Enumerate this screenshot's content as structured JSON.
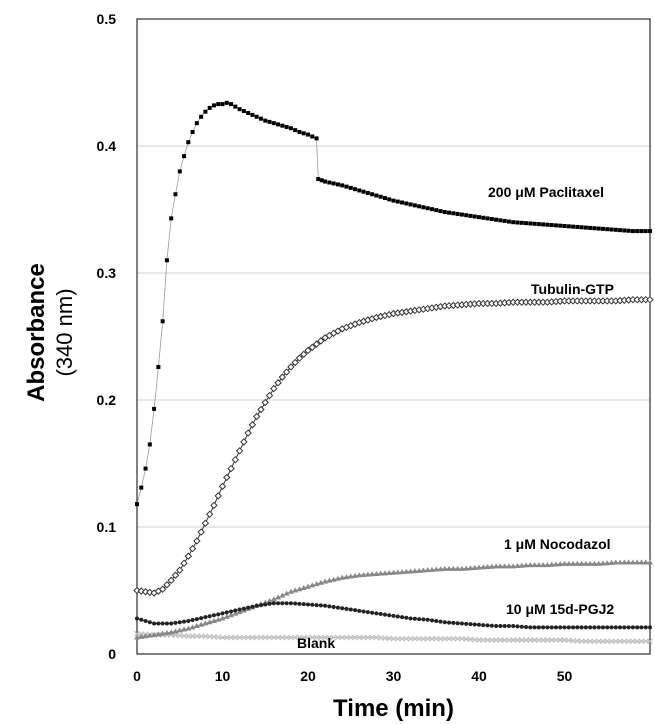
{
  "chart_data": {
    "type": "scatter",
    "title": "",
    "xlabel": "Time (min)",
    "ylabel": "Absorbance",
    "ylabel_unit": "(340 nm)",
    "xlim": [
      0,
      60
    ],
    "ylim": [
      0,
      0.5
    ],
    "x_ticks": [
      0,
      10,
      20,
      30,
      40,
      50
    ],
    "y_ticks": [
      0,
      0.1,
      0.2,
      0.3,
      0.4,
      0.5
    ],
    "y_tick_labels": [
      "0",
      "0.1",
      "0.2",
      "0.3",
      "0.4",
      "0.5"
    ],
    "grid": "horizontal",
    "legend": "inline labels",
    "series": [
      {
        "name": "200 μM Paclitaxel",
        "color": "#000000",
        "marker": "square-filled",
        "points": [
          [
            0,
            0.118
          ],
          [
            0.5,
            0.131
          ],
          [
            1,
            0.146
          ],
          [
            1.5,
            0.165
          ],
          [
            2,
            0.193
          ],
          [
            2.5,
            0.226
          ],
          [
            3,
            0.262
          ],
          [
            3.5,
            0.31
          ],
          [
            4,
            0.343
          ],
          [
            4.5,
            0.362
          ],
          [
            5,
            0.38
          ],
          [
            5.5,
            0.392
          ],
          [
            6,
            0.403
          ],
          [
            6.5,
            0.411
          ],
          [
            7,
            0.418
          ],
          [
            7.5,
            0.423
          ],
          [
            8,
            0.427
          ],
          [
            8.5,
            0.43
          ],
          [
            9,
            0.432
          ],
          [
            9.5,
            0.433
          ],
          [
            10,
            0.433
          ],
          [
            10.5,
            0.434
          ],
          [
            11,
            0.433
          ],
          [
            11.5,
            0.431
          ],
          [
            12,
            0.429
          ],
          [
            13,
            0.426
          ],
          [
            14,
            0.423
          ],
          [
            15,
            0.42
          ],
          [
            16,
            0.418
          ],
          [
            17,
            0.416
          ],
          [
            18,
            0.414
          ],
          [
            19,
            0.411
          ],
          [
            20,
            0.409
          ],
          [
            21,
            0.406
          ],
          [
            21.2,
            0.374
          ],
          [
            22,
            0.372
          ],
          [
            24,
            0.369
          ],
          [
            26,
            0.365
          ],
          [
            28,
            0.361
          ],
          [
            30,
            0.357
          ],
          [
            32,
            0.354
          ],
          [
            34,
            0.351
          ],
          [
            36,
            0.348
          ],
          [
            38,
            0.346
          ],
          [
            40,
            0.344
          ],
          [
            42,
            0.342
          ],
          [
            44,
            0.34
          ],
          [
            46,
            0.339
          ],
          [
            48,
            0.338
          ],
          [
            50,
            0.337
          ],
          [
            52,
            0.336
          ],
          [
            54,
            0.335
          ],
          [
            56,
            0.334
          ],
          [
            58,
            0.333
          ],
          [
            60,
            0.333
          ]
        ]
      },
      {
        "name": "Tubulin-GTP",
        "color": "#333333",
        "marker": "diamond-open",
        "points": [
          [
            0,
            0.05
          ],
          [
            1,
            0.049
          ],
          [
            2,
            0.048
          ],
          [
            3,
            0.051
          ],
          [
            4,
            0.058
          ],
          [
            5,
            0.066
          ],
          [
            6,
            0.077
          ],
          [
            7,
            0.089
          ],
          [
            8,
            0.103
          ],
          [
            9,
            0.117
          ],
          [
            10,
            0.132
          ],
          [
            11,
            0.146
          ],
          [
            12,
            0.16
          ],
          [
            13,
            0.174
          ],
          [
            14,
            0.187
          ],
          [
            15,
            0.198
          ],
          [
            16,
            0.209
          ],
          [
            17,
            0.218
          ],
          [
            18,
            0.226
          ],
          [
            19,
            0.233
          ],
          [
            20,
            0.239
          ],
          [
            22,
            0.249
          ],
          [
            24,
            0.256
          ],
          [
            26,
            0.261
          ],
          [
            28,
            0.265
          ],
          [
            30,
            0.268
          ],
          [
            32,
            0.27
          ],
          [
            34,
            0.272
          ],
          [
            36,
            0.274
          ],
          [
            38,
            0.275
          ],
          [
            40,
            0.276
          ],
          [
            42,
            0.276
          ],
          [
            44,
            0.277
          ],
          [
            46,
            0.277
          ],
          [
            48,
            0.277
          ],
          [
            50,
            0.278
          ],
          [
            52,
            0.278
          ],
          [
            54,
            0.278
          ],
          [
            56,
            0.278
          ],
          [
            58,
            0.279
          ],
          [
            60,
            0.279
          ]
        ]
      },
      {
        "name": "1 μM Nocodazol",
        "color": "#888888",
        "marker": "triangle-filled",
        "points": [
          [
            0,
            0.013
          ],
          [
            2,
            0.015
          ],
          [
            4,
            0.017
          ],
          [
            6,
            0.02
          ],
          [
            8,
            0.024
          ],
          [
            10,
            0.028
          ],
          [
            12,
            0.033
          ],
          [
            14,
            0.038
          ],
          [
            16,
            0.043
          ],
          [
            18,
            0.049
          ],
          [
            20,
            0.053
          ],
          [
            22,
            0.057
          ],
          [
            24,
            0.06
          ],
          [
            26,
            0.062
          ],
          [
            28,
            0.063
          ],
          [
            30,
            0.064
          ],
          [
            32,
            0.065
          ],
          [
            34,
            0.066
          ],
          [
            36,
            0.067
          ],
          [
            38,
            0.067
          ],
          [
            40,
            0.068
          ],
          [
            42,
            0.069
          ],
          [
            44,
            0.069
          ],
          [
            46,
            0.07
          ],
          [
            48,
            0.07
          ],
          [
            50,
            0.071
          ],
          [
            52,
            0.071
          ],
          [
            54,
            0.071
          ],
          [
            56,
            0.072
          ],
          [
            58,
            0.072
          ],
          [
            60,
            0.072
          ]
        ]
      },
      {
        "name": "10 μM 15d-PGJ2",
        "color": "#222222",
        "marker": "circle-filled",
        "points": [
          [
            0,
            0.028
          ],
          [
            2,
            0.024
          ],
          [
            4,
            0.024
          ],
          [
            6,
            0.026
          ],
          [
            8,
            0.029
          ],
          [
            10,
            0.032
          ],
          [
            12,
            0.035
          ],
          [
            14,
            0.038
          ],
          [
            16,
            0.04
          ],
          [
            18,
            0.04
          ],
          [
            20,
            0.039
          ],
          [
            22,
            0.038
          ],
          [
            24,
            0.036
          ],
          [
            26,
            0.034
          ],
          [
            28,
            0.032
          ],
          [
            30,
            0.03
          ],
          [
            32,
            0.028
          ],
          [
            34,
            0.027
          ],
          [
            36,
            0.025
          ],
          [
            38,
            0.024
          ],
          [
            40,
            0.023
          ],
          [
            42,
            0.022
          ],
          [
            44,
            0.022
          ],
          [
            46,
            0.021
          ],
          [
            48,
            0.021
          ],
          [
            50,
            0.021
          ],
          [
            52,
            0.021
          ],
          [
            54,
            0.021
          ],
          [
            56,
            0.021
          ],
          [
            58,
            0.021
          ],
          [
            60,
            0.021
          ]
        ]
      },
      {
        "name": "Blank",
        "color": "#c0c0c0",
        "marker": "x",
        "points": [
          [
            0,
            0.016
          ],
          [
            2,
            0.015
          ],
          [
            4,
            0.015
          ],
          [
            6,
            0.014
          ],
          [
            8,
            0.014
          ],
          [
            10,
            0.013
          ],
          [
            12,
            0.013
          ],
          [
            14,
            0.013
          ],
          [
            16,
            0.013
          ],
          [
            18,
            0.013
          ],
          [
            20,
            0.013
          ],
          [
            22,
            0.013
          ],
          [
            24,
            0.013
          ],
          [
            26,
            0.013
          ],
          [
            28,
            0.013
          ],
          [
            30,
            0.012
          ],
          [
            32,
            0.012
          ],
          [
            34,
            0.012
          ],
          [
            36,
            0.012
          ],
          [
            38,
            0.012
          ],
          [
            40,
            0.011
          ],
          [
            42,
            0.011
          ],
          [
            44,
            0.011
          ],
          [
            46,
            0.011
          ],
          [
            48,
            0.011
          ],
          [
            50,
            0.011
          ],
          [
            52,
            0.01
          ],
          [
            54,
            0.01
          ],
          [
            56,
            0.01
          ],
          [
            58,
            0.01
          ],
          [
            60,
            0.01
          ]
        ]
      }
    ]
  }
}
